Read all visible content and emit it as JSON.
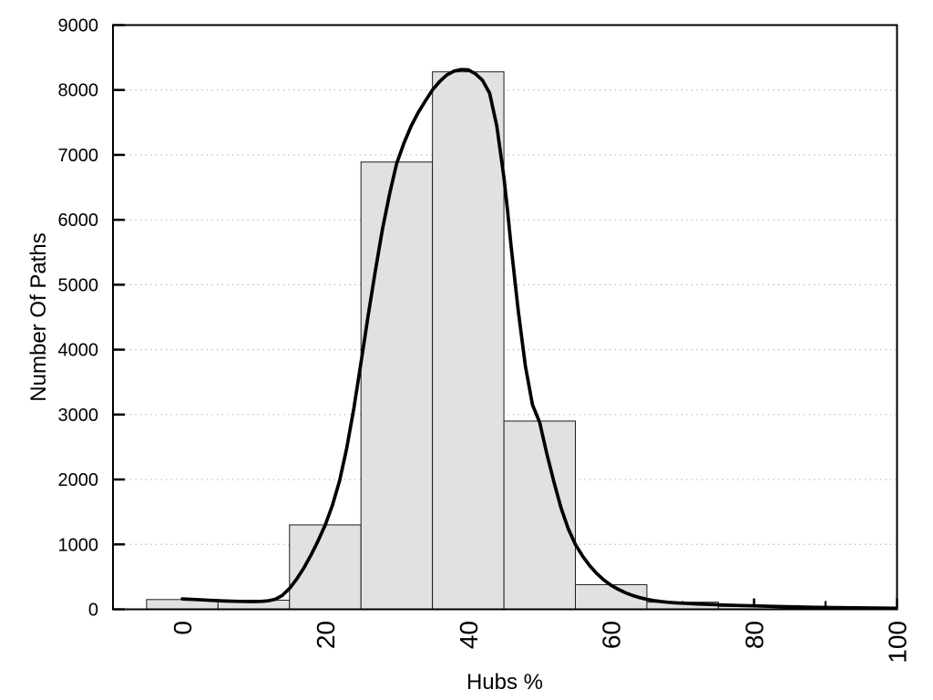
{
  "chart_data": {
    "type": "bar",
    "subtype": "histogram-with-density-curve",
    "title": "",
    "xlabel": "Hubs %",
    "ylabel": "Number Of Paths",
    "xlim": [
      -9.7,
      100
    ],
    "ylim": [
      0,
      9000
    ],
    "grid": "horizontal-dotted",
    "legend": "none",
    "x_major_ticks": [
      0,
      20,
      40,
      60,
      80,
      100
    ],
    "x_major_tick_labels": [
      "0",
      "20",
      "40",
      "60",
      "80",
      "100"
    ],
    "x_minor_ticks": [
      10,
      30,
      50,
      70,
      90
    ],
    "y_major_ticks": [
      0,
      1000,
      2000,
      3000,
      4000,
      5000,
      6000,
      7000,
      8000,
      9000
    ],
    "y_major_tick_labels": [
      "0",
      "1000",
      "2000",
      "3000",
      "4000",
      "5000",
      "6000",
      "7000",
      "8000",
      "9000"
    ],
    "y_gridline_values": [
      1000,
      2000,
      3000,
      4000,
      5000,
      6000,
      7000,
      8000
    ],
    "bin_width": 10,
    "categories": [
      0,
      10,
      20,
      30,
      40,
      50,
      60,
      70,
      80,
      90,
      100
    ],
    "values": [
      150,
      140,
      1300,
      6890,
      8280,
      2900,
      380,
      110,
      45,
      15,
      8
    ],
    "curve": {
      "name": "fitted-density-curve",
      "points": [
        [
          0,
          160
        ],
        [
          2,
          150
        ],
        [
          4,
          138
        ],
        [
          6,
          128
        ],
        [
          8,
          122
        ],
        [
          10,
          120
        ],
        [
          11,
          122
        ],
        [
          12,
          131
        ],
        [
          13,
          155
        ],
        [
          14,
          215
        ],
        [
          15,
          320
        ],
        [
          16,
          465
        ],
        [
          17,
          635
        ],
        [
          18,
          835
        ],
        [
          19,
          1055
        ],
        [
          20,
          1300
        ],
        [
          21,
          1600
        ],
        [
          22,
          1980
        ],
        [
          23,
          2480
        ],
        [
          24,
          3090
        ],
        [
          25,
          3800
        ],
        [
          26,
          4520
        ],
        [
          27,
          5210
        ],
        [
          28,
          5850
        ],
        [
          29,
          6400
        ],
        [
          30,
          6870
        ],
        [
          31,
          7180
        ],
        [
          32,
          7440
        ],
        [
          33,
          7650
        ],
        [
          34,
          7830
        ],
        [
          35,
          8000
        ],
        [
          36,
          8130
        ],
        [
          37,
          8230
        ],
        [
          38,
          8290
        ],
        [
          39,
          8315
        ],
        [
          40,
          8310
        ],
        [
          41,
          8250
        ],
        [
          42,
          8150
        ],
        [
          43,
          7950
        ],
        [
          44,
          7450
        ],
        [
          45,
          6650
        ],
        [
          45.5,
          6150
        ],
        [
          46,
          5600
        ],
        [
          47,
          4600
        ],
        [
          48,
          3750
        ],
        [
          49,
          3150
        ],
        [
          50,
          2880
        ],
        [
          51,
          2400
        ],
        [
          52,
          1960
        ],
        [
          53,
          1560
        ],
        [
          54,
          1240
        ],
        [
          55,
          1000
        ],
        [
          56,
          820
        ],
        [
          57,
          672
        ],
        [
          58,
          550
        ],
        [
          59,
          450
        ],
        [
          60,
          370
        ],
        [
          61,
          307
        ],
        [
          62,
          255
        ],
        [
          63,
          213
        ],
        [
          64,
          180
        ],
        [
          65,
          153
        ],
        [
          66,
          133
        ],
        [
          67,
          119
        ],
        [
          68,
          108
        ],
        [
          69,
          100
        ],
        [
          70,
          94
        ],
        [
          72,
          83
        ],
        [
          74,
          74
        ],
        [
          76,
          66
        ],
        [
          78,
          59
        ],
        [
          80,
          53
        ],
        [
          83,
          44
        ],
        [
          86,
          36
        ],
        [
          90,
          28
        ],
        [
          94,
          22
        ],
        [
          100,
          17
        ]
      ]
    },
    "colors": {
      "bar_fill": "#e1e1e1",
      "bar_border": "#1c1c1c",
      "curve": "#000000",
      "grid": "#b0b0b0",
      "frame": "#000000",
      "text": "#000000",
      "background": "#ffffff"
    }
  }
}
